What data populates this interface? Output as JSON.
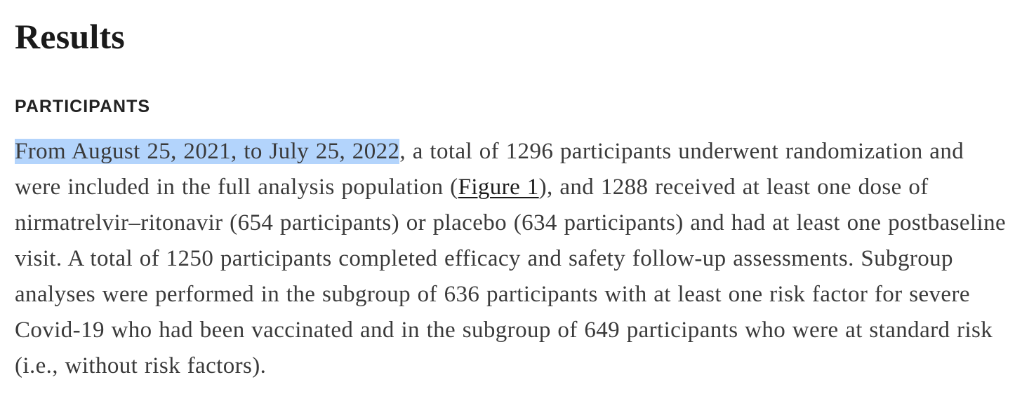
{
  "section": {
    "title": "Results"
  },
  "subsection": {
    "title": "PARTICIPANTS"
  },
  "paragraph": {
    "selected_text": "From August 25, 2021, to July 25, 2022",
    "text_1": ", a total of 1296 participants underwent randomization and were included in the full analysis population (",
    "link_label": "Figure 1",
    "text_2": "), and 1288 received at least one dose of nirmatrelvir–ritonavir (654 participants) or placebo (634 participants) and had at least one postbaseline visit. A total of 1250 participants completed efficacy and safety follow-up assessments. Subgroup analyses were performed in the subgroup of 636 participants with at least one risk factor for severe Covid-19 who had been vaccinated and in the subgroup of 649 participants who were at standard risk (i.e., without risk factors)."
  },
  "colors": {
    "selection_highlight": "#b3d4fc",
    "heading_text": "#1a1a1a",
    "body_text": "#3a3a3a"
  }
}
